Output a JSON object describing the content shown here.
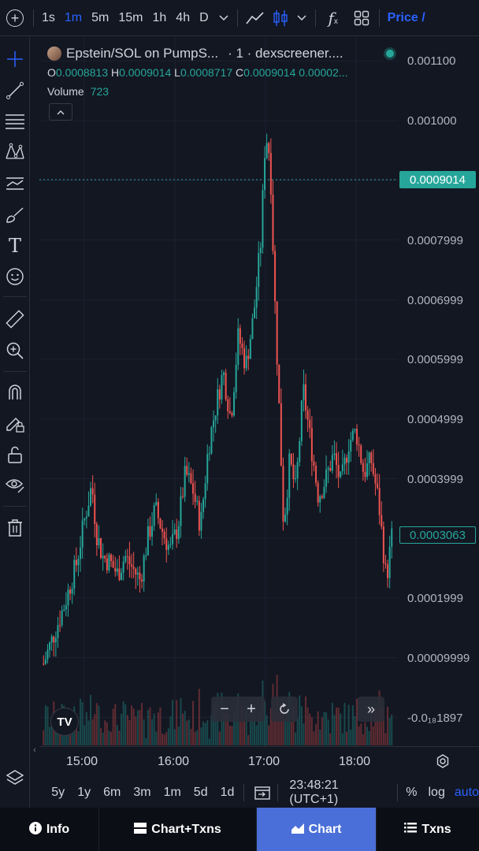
{
  "toolbar": {
    "intervals": [
      "1s",
      "1m",
      "5m",
      "15m",
      "1h",
      "4h",
      "D"
    ],
    "active_interval": "1m",
    "price_label": "Price /"
  },
  "legend": {
    "title": "Epstein/SOL on PumpS...",
    "source": "· 1 · dexscreener....",
    "ohlc": {
      "o_key": "O",
      "o_val": "0.0008813",
      "h_key": "H",
      "h_val": "0.0009014",
      "l_key": "L",
      "l_val": "0.0008717",
      "c_key": "C",
      "c_val": "0.0009014",
      "change": "0.00002..."
    },
    "volume_label": "Volume",
    "volume_value": "723"
  },
  "price_scale": {
    "labels": [
      "0.001100",
      "0.001000",
      "0.0007999",
      "0.0006999",
      "0.0005999",
      "0.0004999",
      "0.0003999",
      "0.0001999",
      "0.00009999"
    ],
    "bottom_label": "-0.0₁₈1897",
    "last_price_tag": "0.0009014",
    "current_tag": "0.0003063"
  },
  "time_axis": [
    "15:00",
    "16:00",
    "17:00",
    "18:00"
  ],
  "range_bar": {
    "ranges": [
      "5y",
      "1y",
      "6m",
      "3m",
      "1m",
      "5d",
      "1d"
    ],
    "clock": "23:48:21 (UTC+1)",
    "percent": "%",
    "log": "log",
    "auto": "auto"
  },
  "bottom_nav": {
    "info": "Info",
    "chart_txns": "Chart+Txns",
    "chart": "Chart",
    "txns": "Txns"
  },
  "colors": {
    "up": "#26a69a",
    "down": "#ef5350",
    "accent": "#2962ff",
    "background": "#131722"
  },
  "chart_data": {
    "type": "candlestick",
    "x_ticks": [
      "15:00",
      "16:00",
      "17:00",
      "18:00"
    ],
    "y_range": [
      -5e-05,
      0.00115
    ],
    "series": [
      {
        "t": "14:33",
        "p": 9e-05
      },
      {
        "t": "14:40",
        "p": 0.00014
      },
      {
        "t": "14:47",
        "p": 0.00019
      },
      {
        "t": "14:55",
        "p": 0.00026
      },
      {
        "t": "15:00",
        "p": 0.00033
      },
      {
        "t": "15:05",
        "p": 0.00039
      },
      {
        "t": "15:08",
        "p": 0.00031
      },
      {
        "t": "15:12",
        "p": 0.00027
      },
      {
        "t": "15:17",
        "p": 0.00026
      },
      {
        "t": "15:22",
        "p": 0.00024
      },
      {
        "t": "15:27",
        "p": 0.00027
      },
      {
        "t": "15:32",
        "p": 0.00025
      },
      {
        "t": "15:37",
        "p": 0.00023
      },
      {
        "t": "15:42",
        "p": 0.0003
      },
      {
        "t": "15:47",
        "p": 0.00035
      },
      {
        "t": "15:52",
        "p": 0.00031
      },
      {
        "t": "15:57",
        "p": 0.00028
      },
      {
        "t": "16:02",
        "p": 0.00032
      },
      {
        "t": "16:07",
        "p": 0.00041
      },
      {
        "t": "16:12",
        "p": 0.00038
      },
      {
        "t": "16:17",
        "p": 0.00032
      },
      {
        "t": "16:22",
        "p": 0.00045
      },
      {
        "t": "16:27",
        "p": 0.00052
      },
      {
        "t": "16:32",
        "p": 0.00058
      },
      {
        "t": "16:37",
        "p": 0.0005
      },
      {
        "t": "16:42",
        "p": 0.00064
      },
      {
        "t": "16:47",
        "p": 0.00059
      },
      {
        "t": "16:52",
        "p": 0.00067
      },
      {
        "t": "16:57",
        "p": 0.0008
      },
      {
        "t": "17:00",
        "p": 0.00098
      },
      {
        "t": "17:03",
        "p": 0.00094
      },
      {
        "t": "17:06",
        "p": 0.00071
      },
      {
        "t": "17:09",
        "p": 0.00052
      },
      {
        "t": "17:12",
        "p": 0.00032
      },
      {
        "t": "17:16",
        "p": 0.00043
      },
      {
        "t": "17:20",
        "p": 0.00038
      },
      {
        "t": "17:25",
        "p": 0.00055
      },
      {
        "t": "17:30",
        "p": 0.00046
      },
      {
        "t": "17:35",
        "p": 0.00037
      },
      {
        "t": "17:40",
        "p": 0.0004
      },
      {
        "t": "17:45",
        "p": 0.00044
      },
      {
        "t": "17:50",
        "p": 0.00039
      },
      {
        "t": "17:55",
        "p": 0.00046
      },
      {
        "t": "18:00",
        "p": 0.00048
      },
      {
        "t": "18:05",
        "p": 0.00041
      },
      {
        "t": "18:10",
        "p": 0.00043
      },
      {
        "t": "18:15",
        "p": 0.00036
      },
      {
        "t": "18:20",
        "p": 0.00023
      },
      {
        "t": "18:24",
        "p": 0.00031
      }
    ]
  }
}
